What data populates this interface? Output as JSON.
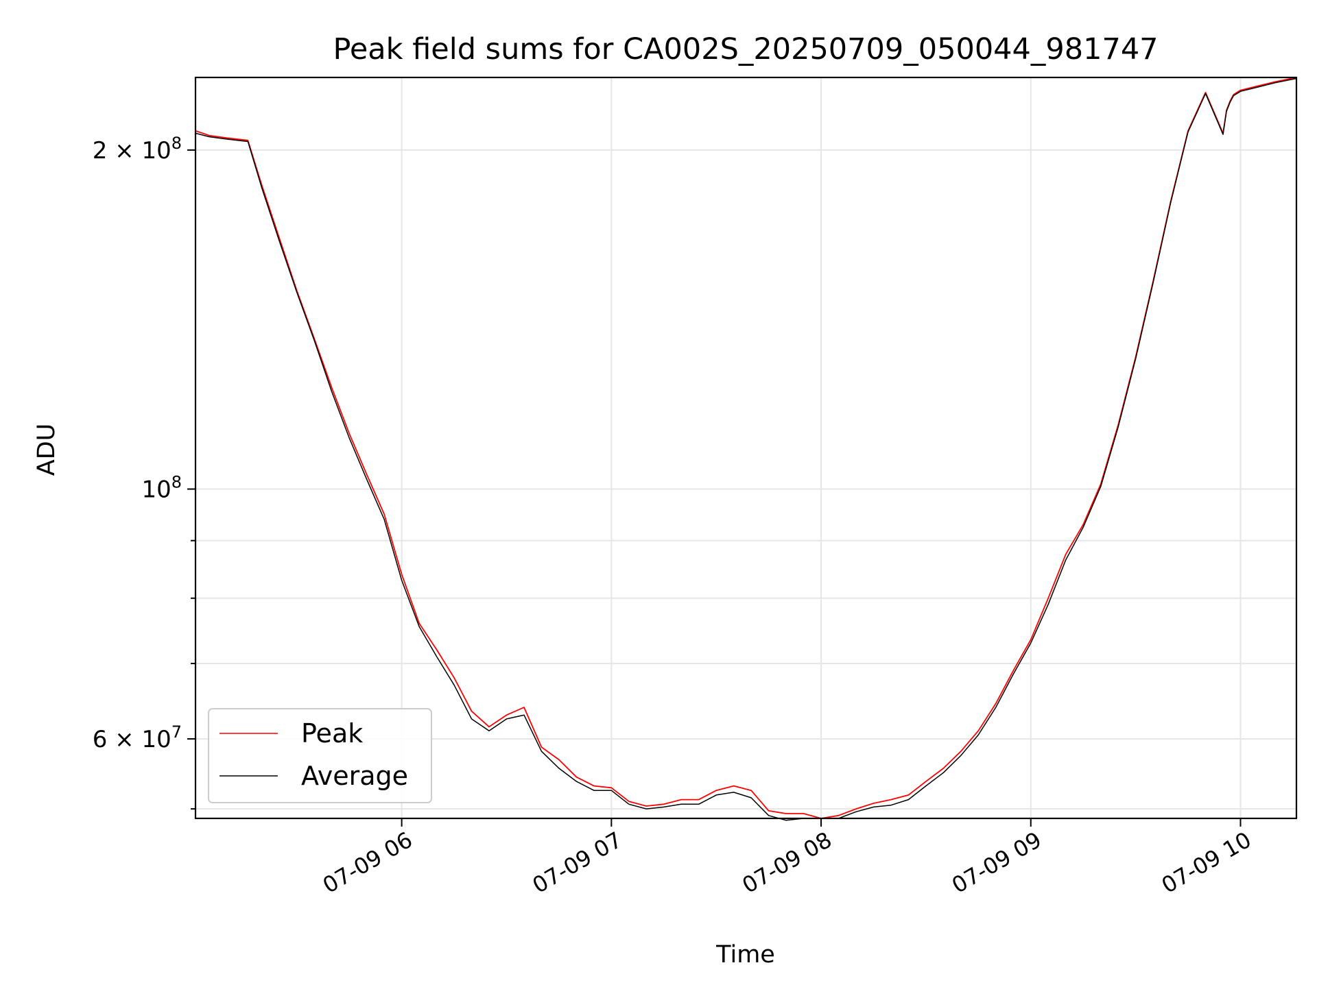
{
  "chart_data": {
    "type": "line",
    "title": "Peak field sums for CA002S_20250709_050044_981747",
    "xlabel": "Time",
    "ylabel": "ADU",
    "y_scale": "log",
    "grid": true,
    "legend_position": "lower-left",
    "xlim": [
      "2025-07-09 05:01",
      "2025-07-09 10:16"
    ],
    "ylim": [
      51000000,
      232000000
    ],
    "x_ticks": [
      {
        "value": "2025-07-09 06:00",
        "label": "07-09 06"
      },
      {
        "value": "2025-07-09 07:00",
        "label": "07-09 07"
      },
      {
        "value": "2025-07-09 08:00",
        "label": "07-09 08"
      },
      {
        "value": "2025-07-09 09:00",
        "label": "07-09 09"
      },
      {
        "value": "2025-07-09 10:00",
        "label": "07-09 10"
      }
    ],
    "y_ticks": [
      {
        "value": 200000000,
        "base": "2",
        "mult": "×",
        "pow": "10",
        "exp": "8"
      },
      {
        "value": 100000000,
        "base": "",
        "mult": "",
        "pow": "10",
        "exp": "8"
      },
      {
        "value": 60000000,
        "base": "6",
        "mult": "×",
        "pow": "10",
        "exp": "7"
      }
    ],
    "y_minor_ticks": [
      90000000,
      80000000,
      70000000,
      52000000
    ],
    "series": [
      {
        "name": "Peak",
        "color": "#ff0000",
        "x": [
          "05:01",
          "05:05",
          "05:10",
          "05:16",
          "05:20",
          "05:25",
          "05:30",
          "05:35",
          "05:40",
          "05:45",
          "05:50",
          "05:55",
          "06:00",
          "06:05",
          "06:10",
          "06:15",
          "06:20",
          "06:25",
          "06:30",
          "06:35",
          "06:40",
          "06:45",
          "06:50",
          "06:55",
          "07:00",
          "07:05",
          "07:10",
          "07:15",
          "07:20",
          "07:25",
          "07:30",
          "07:35",
          "07:40",
          "07:45",
          "07:50",
          "07:55",
          "08:00",
          "08:05",
          "08:10",
          "08:15",
          "08:20",
          "08:25",
          "08:30",
          "08:35",
          "08:40",
          "08:45",
          "08:50",
          "08:55",
          "09:00",
          "09:05",
          "09:10",
          "09:15",
          "09:20",
          "09:25",
          "09:30",
          "09:35",
          "09:40",
          "09:45",
          "09:50",
          "09:55",
          "09:56",
          "09:57",
          "09:58",
          "10:00",
          "10:05",
          "10:10",
          "10:16"
        ],
        "y": [
          208000000,
          206000000,
          205000000,
          204000000,
          186000000,
          167000000,
          150000000,
          136000000,
          123000000,
          112000000,
          103000000,
          95000000,
          84000000,
          76000000,
          72000000,
          68000000,
          63500000,
          61500000,
          63000000,
          64000000,
          59000000,
          57500000,
          55500000,
          54500000,
          54300000,
          52800000,
          52300000,
          52500000,
          53000000,
          53000000,
          54000000,
          54500000,
          54000000,
          51800000,
          51500000,
          51500000,
          51000000,
          51300000,
          52000000,
          52600000,
          53000000,
          53500000,
          55000000,
          56500000,
          58500000,
          61000000,
          64500000,
          69000000,
          73500000,
          80000000,
          87500000,
          93000000,
          101000000,
          114000000,
          131000000,
          153000000,
          180000000,
          208000000,
          225000000,
          207000000,
          217000000,
          221000000,
          224000000,
          226000000,
          228000000,
          230000000,
          232000000
        ]
      },
      {
        "name": "Average",
        "color": "#000000",
        "x": [
          "05:01",
          "05:05",
          "05:10",
          "05:16",
          "05:20",
          "05:25",
          "05:30",
          "05:35",
          "05:40",
          "05:45",
          "05:50",
          "05:55",
          "06:00",
          "06:05",
          "06:10",
          "06:15",
          "06:20",
          "06:25",
          "06:30",
          "06:35",
          "06:40",
          "06:45",
          "06:50",
          "06:55",
          "07:00",
          "07:05",
          "07:10",
          "07:15",
          "07:20",
          "07:25",
          "07:30",
          "07:35",
          "07:40",
          "07:45",
          "07:50",
          "07:55",
          "08:00",
          "08:05",
          "08:10",
          "08:15",
          "08:20",
          "08:25",
          "08:30",
          "08:35",
          "08:40",
          "08:45",
          "08:50",
          "08:55",
          "09:00",
          "09:05",
          "09:10",
          "09:15",
          "09:20",
          "09:25",
          "09:30",
          "09:35",
          "09:40",
          "09:45",
          "09:50",
          "09:55",
          "09:56",
          "09:57",
          "09:58",
          "10:00",
          "10:05",
          "10:10",
          "10:16"
        ],
        "y": [
          207000000,
          205500000,
          204500000,
          203500000,
          185000000,
          166000000,
          149500000,
          135500000,
          122000000,
          111000000,
          102000000,
          94000000,
          83000000,
          75500000,
          71000000,
          67000000,
          62500000,
          61000000,
          62500000,
          63000000,
          58500000,
          56500000,
          55000000,
          54000000,
          54000000,
          52500000,
          52000000,
          52200000,
          52500000,
          52500000,
          53500000,
          53800000,
          53200000,
          51300000,
          50800000,
          51000000,
          51000000,
          51000000,
          51700000,
          52200000,
          52400000,
          53000000,
          54500000,
          56000000,
          58000000,
          60500000,
          64000000,
          68500000,
          73000000,
          79000000,
          86500000,
          92500000,
          100500000,
          113500000,
          130500000,
          152500000,
          179500000,
          207500000,
          224500000,
          206500000,
          216500000,
          220500000,
          223500000,
          225500000,
          227500000,
          229500000,
          231500000
        ]
      }
    ]
  }
}
